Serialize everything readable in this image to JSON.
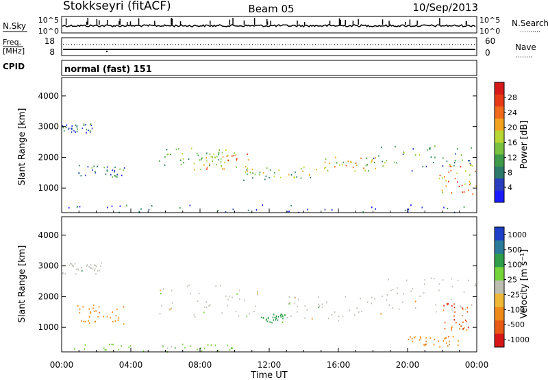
{
  "header": {
    "station": "Stokkseyri (fitACF)",
    "beam": "Beam 05",
    "date": "10/Sep/2013"
  },
  "nsky_panel": {
    "left_label": "N.Sky",
    "left_ticks": [
      "10^5",
      "10^0"
    ],
    "right_ticks": [
      "10^5",
      "10^0"
    ],
    "right_label": "N.Search"
  },
  "freq_panel": {
    "label_line1": "Freq.",
    "label_line2": "[MHz]",
    "left_ticks": [
      "18",
      "8"
    ],
    "right_ticks": [
      "60",
      "0"
    ],
    "right_label": "Nave"
  },
  "cpid_panel": {
    "label": "CPID",
    "value": "normal (fast) 151"
  },
  "colors": {
    "power_scale": [
      "#1a1aff",
      "#2a3fbf",
      "#2d7a6a",
      "#3f9b4a",
      "#7ac13f",
      "#b8d633",
      "#f2a21e",
      "#ef6a1a",
      "#e63a17",
      "#d61a1a"
    ],
    "velocity_scale": [
      "#1e3fc8",
      "#2a7a9a",
      "#2e9e4a",
      "#74d43a",
      "#bdbdb0",
      "#f0b838",
      "#ef8a1a",
      "#e85a14",
      "#d81818"
    ],
    "ground_scatter": "#c2c0b6"
  },
  "chart_data": [
    {
      "type": "heatmap",
      "title": "Power",
      "ylabel": "Slant Range [km]",
      "yticks": [
        "1000",
        "2000",
        "3000",
        "4000"
      ],
      "ylim": [
        200,
        4600
      ],
      "xlim": [
        0,
        24
      ],
      "colorbar": {
        "label": "Power [dB]",
        "ticks": [
          "4",
          "8",
          "12",
          "16",
          "20",
          "24",
          "28"
        ],
        "range": [
          0,
          32
        ]
      },
      "features": [
        {
          "t_start": 0.0,
          "t_end": 1.8,
          "range_low": 2800,
          "range_high": 3100,
          "value": 6
        },
        {
          "t_start": 0.9,
          "t_end": 3.6,
          "range_low": 1350,
          "range_high": 1750,
          "value": 9
        },
        {
          "t_start": 5.6,
          "t_end": 9.5,
          "range_low": 1700,
          "range_high": 2300,
          "value": 12
        },
        {
          "t_start": 7.6,
          "t_end": 11.0,
          "range_low": 1600,
          "range_high": 2200,
          "value": 21
        },
        {
          "t_start": 10.5,
          "t_end": 15.0,
          "range_low": 1250,
          "range_high": 1700,
          "value": 14
        },
        {
          "t_start": 15.0,
          "t_end": 18.2,
          "range_low": 1550,
          "range_high": 2000,
          "value": 18
        },
        {
          "t_start": 18.0,
          "t_end": 24.0,
          "range_low": 1500,
          "range_high": 2400,
          "value": 11
        },
        {
          "t_start": 21.8,
          "t_end": 24.0,
          "range_low": 800,
          "range_high": 1800,
          "value": 22
        },
        {
          "t_start": 0.0,
          "t_end": 24.0,
          "range_low": 200,
          "range_high": 450,
          "value": 5
        }
      ]
    },
    {
      "type": "heatmap",
      "title": "Velocity",
      "xlabel": "Time UT",
      "ylabel": "Slant Range [km]",
      "xticks": [
        "00:00",
        "04:00",
        "08:00",
        "12:00",
        "16:00",
        "20:00",
        "00:00"
      ],
      "yticks": [
        "1000",
        "2000",
        "3000",
        "4000"
      ],
      "ylim": [
        200,
        4600
      ],
      "xlim": [
        0,
        24
      ],
      "colorbar": {
        "label": "Velocity [m s⁻¹]",
        "ticks": [
          "1000",
          "500",
          "100",
          "25",
          "-25",
          "-100",
          "-500",
          "-1000"
        ],
        "range": [
          -1000,
          1000
        ]
      },
      "features": [
        {
          "t_start": 0.0,
          "t_end": 2.5,
          "range_low": 2700,
          "range_high": 3100,
          "value": 0
        },
        {
          "t_start": 0.9,
          "t_end": 3.6,
          "range_low": 1100,
          "range_high": 1750,
          "value": -300
        },
        {
          "t_start": 5.6,
          "t_end": 11.5,
          "range_low": 1300,
          "range_high": 2400,
          "value": 0
        },
        {
          "t_start": 11.5,
          "t_end": 13.0,
          "range_low": 1150,
          "range_high": 1450,
          "value": 200
        },
        {
          "t_start": 13.0,
          "t_end": 18.5,
          "range_low": 1200,
          "range_high": 2100,
          "value": 0
        },
        {
          "t_start": 18.5,
          "t_end": 24.0,
          "range_low": 1500,
          "range_high": 2600,
          "value": 0
        },
        {
          "t_start": 22.0,
          "t_end": 23.5,
          "range_low": 900,
          "range_high": 1800,
          "value": -700
        },
        {
          "t_start": 20.0,
          "t_end": 23.0,
          "range_low": 350,
          "range_high": 700,
          "value": -300
        },
        {
          "t_start": 0.0,
          "t_end": 10.0,
          "range_low": 200,
          "range_high": 450,
          "value": 60
        }
      ]
    }
  ]
}
